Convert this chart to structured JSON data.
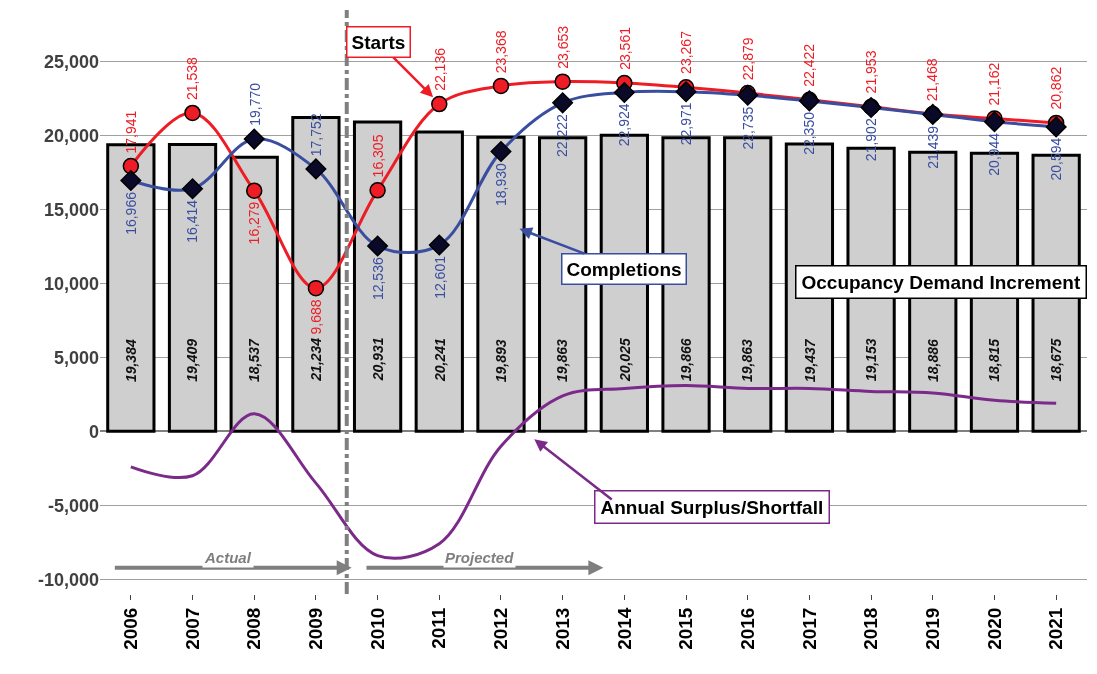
{
  "chart_data": {
    "type": "bar",
    "x": [
      2006,
      2007,
      2008,
      2009,
      2010,
      2011,
      2012,
      2013,
      2014,
      2015,
      2016,
      2017,
      2018,
      2019,
      2020,
      2021
    ],
    "xlim": [
      2005.5,
      2021.5
    ],
    "xticks": [
      2006,
      2007,
      2008,
      2009,
      2010,
      2011,
      2012,
      2013,
      2014,
      2015,
      2016,
      2017,
      2018,
      2019,
      2020,
      2021
    ],
    "ylim": [
      -11000,
      28500
    ],
    "yticks": [
      {
        "value": -10000,
        "label": "-10,000"
      },
      {
        "value": -5000,
        "label": "-5,000"
      },
      0,
      {
        "value": 5000,
        "label": "5,000"
      },
      {
        "value": 10000,
        "label": "10,000"
      },
      {
        "value": 15000,
        "label": "15,000"
      },
      {
        "value": 20000,
        "label": "20,000"
      },
      {
        "value": 25000,
        "label": "25,000"
      }
    ],
    "grid": "y",
    "series": [
      {
        "color": "#cfcfcf",
        "values": [
          19384,
          19409,
          18537,
          21234,
          20931,
          20241,
          19893,
          19863,
          20025,
          19866,
          19863,
          19437,
          19153,
          18886,
          18815,
          18675
        ],
        "value_labels": [
          "19,384",
          "19,409",
          "18,537",
          "21,234",
          "20,931",
          "20,241",
          "19,893",
          "19,863",
          "20,025",
          "19,866",
          "19,863",
          "19,437",
          "19,153",
          "18,886",
          "18,815",
          "18,675"
        ]
      },
      {
        "type": "line",
        "color": "#ee1c25",
        "marker": "circle",
        "values": [
          17941,
          21538,
          16279,
          9688,
          16305,
          22136,
          23368,
          23653,
          23561,
          23267,
          22879,
          22422,
          21953,
          21468,
          21162,
          20862
        ],
        "value_labels": [
          "17,941",
          "21,538",
          "16,279",
          "9,688",
          "16,305",
          "22,136",
          "23,368",
          "23,653",
          "23,561",
          "23,267",
          "22,879",
          "22,422",
          "21,953",
          "21,468",
          "21,162",
          "20,862"
        ]
      },
      {
        "type": "line",
        "color": "#3a4ea0",
        "marker": "diamond",
        "values": [
          16966,
          16414,
          19770,
          17752,
          12536,
          12601,
          18930,
          22222,
          22924,
          22971,
          22735,
          22350,
          21902,
          21439,
          20944,
          20594
        ],
        "value_labels": [
          "16,966",
          "16,414",
          "19,770",
          "17,752",
          "12,536",
          "12,601",
          "18,930",
          "22,222",
          "22,924",
          "22,971",
          "22,735",
          "22,350",
          "21,902",
          "21,439",
          "20,944",
          "20,594"
        ]
      },
      {
        "type": "line",
        "color": "#7b2a8a",
        "marker": "none",
        "values": [
          -2400,
          -3000,
          1200,
          -3500,
          -8400,
          -7600,
          -1000,
          2400,
          2900,
          3100,
          2900,
          2900,
          2700,
          2600,
          2100,
          1900
        ]
      }
    ],
    "ref_lines": [
      {
        "axis": "x",
        "value": 2009.5,
        "color": "#808080",
        "line_style": "dashdot"
      }
    ],
    "annotations": [
      {
        "text": "Starts",
        "x": 2010.9,
        "y": 22600
      },
      {
        "text": "Completions",
        "x": 2012.3,
        "y": 13700
      },
      "Occupancy Demand Increment",
      "Annual Surplus/Shortfall",
      "Actual",
      "Projected"
    ]
  }
}
